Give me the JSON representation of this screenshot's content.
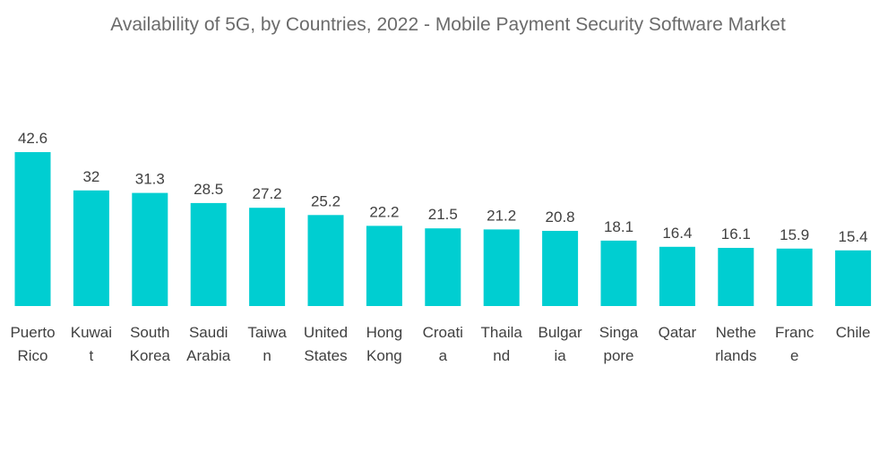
{
  "chart_data": {
    "type": "bar",
    "title": "Availability of 5G, by Countries, 2022 - Mobile Payment Security Software Market",
    "xlabel": "",
    "ylabel": "",
    "ylim": [
      0,
      42.6
    ],
    "grid": false,
    "legend": "none",
    "bar_color": "#00CED1",
    "categories": [
      [
        "Puerto",
        "Rico"
      ],
      [
        "Kuwai",
        "t"
      ],
      [
        "South",
        "Korea"
      ],
      [
        "Saudi",
        "Arabia"
      ],
      [
        "Taiwa",
        "n"
      ],
      [
        "United",
        "States"
      ],
      [
        "Hong",
        "Kong"
      ],
      [
        "Croati",
        "a"
      ],
      [
        "Thaila",
        "nd"
      ],
      [
        "Bulgar",
        "ia"
      ],
      [
        "Singa",
        "pore"
      ],
      [
        "Qatar"
      ],
      [
        "Nethe",
        "rlands"
      ],
      [
        "Franc",
        "e"
      ],
      [
        "Chile"
      ]
    ],
    "value_labels": [
      "42.6",
      "32",
      "31.3",
      "28.5",
      "27.2",
      "25.2",
      "22.2",
      "21.5",
      "21.2",
      "20.8",
      "18.1",
      "16.4",
      "16.1",
      "15.9",
      "15.4"
    ],
    "values": [
      42.6,
      32,
      31.3,
      28.5,
      27.2,
      25.2,
      22.2,
      21.5,
      21.2,
      20.8,
      18.1,
      16.4,
      16.1,
      15.9,
      15.4
    ]
  }
}
